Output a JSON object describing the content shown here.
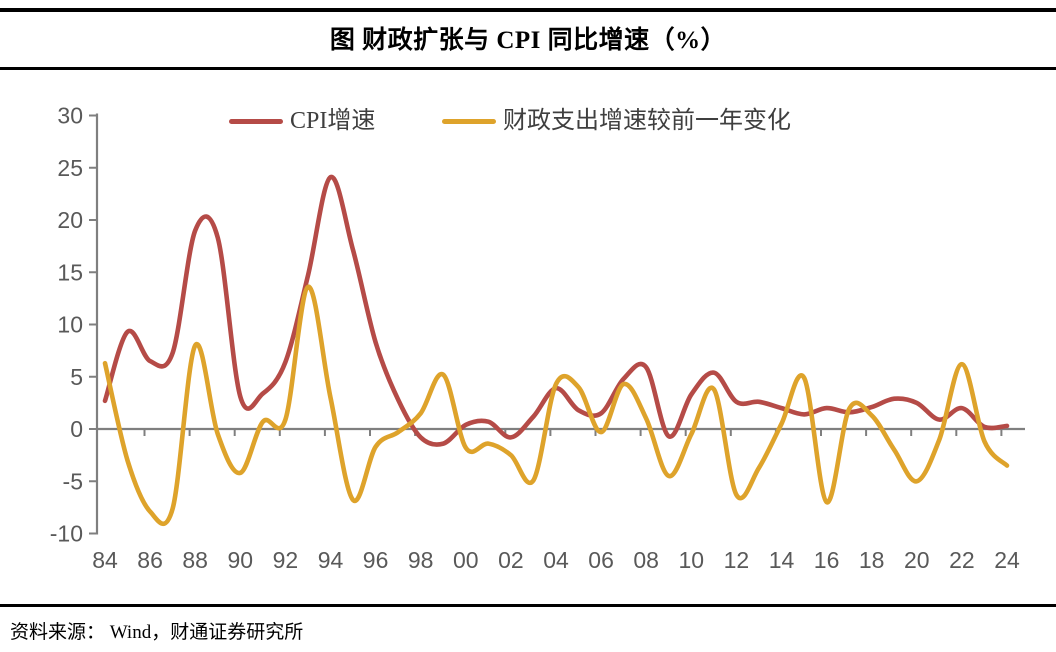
{
  "header": {
    "title": "图  财政扩张与 CPI 同比增速（%）"
  },
  "source_note": {
    "text": "资料来源：  Wind，财通证券研究所"
  },
  "chart_data": {
    "type": "line",
    "title": "图  财政扩张与 CPI 同比增速（%）",
    "xlabel": "",
    "ylabel": "",
    "ylim": [
      -10,
      30
    ],
    "y_ticks": [
      30,
      25,
      20,
      15,
      10,
      5,
      0,
      -5,
      -10
    ],
    "x_years": [
      1984,
      1985,
      1986,
      1987,
      1988,
      1989,
      1990,
      1991,
      1992,
      1993,
      1994,
      1995,
      1996,
      1997,
      1998,
      1999,
      2000,
      2001,
      2002,
      2003,
      2004,
      2005,
      2006,
      2007,
      2008,
      2009,
      2010,
      2011,
      2012,
      2013,
      2014,
      2015,
      2016,
      2017,
      2018,
      2019,
      2020,
      2021,
      2022,
      2023,
      2024
    ],
    "x_tick_labels": [
      "84",
      "86",
      "88",
      "90",
      "92",
      "94",
      "96",
      "98",
      "00",
      "02",
      "04",
      "06",
      "08",
      "10",
      "12",
      "14",
      "16",
      "18",
      "20",
      "22",
      "24"
    ],
    "grid": false,
    "legend_position": "top",
    "axis_color": "#7f7f7f",
    "tick_label_color": "#595959",
    "series": [
      {
        "name": "CPI增速",
        "color": "#b54b47",
        "values": [
          2.7,
          9.3,
          6.5,
          7.3,
          19.0,
          18.3,
          3.1,
          3.4,
          6.4,
          14.7,
          24.1,
          17.1,
          8.3,
          2.8,
          -0.8,
          -1.4,
          0.4,
          0.7,
          -0.8,
          1.2,
          3.9,
          1.8,
          1.5,
          4.8,
          5.9,
          -0.7,
          3.3,
          5.4,
          2.6,
          2.6,
          2.0,
          1.4,
          2.0,
          1.6,
          2.1,
          2.9,
          2.5,
          0.9,
          2.0,
          0.2,
          0.3
        ]
      },
      {
        "name": "财政支出增速较前一年变化",
        "color": "#dea32b",
        "values": [
          6.3,
          -3.0,
          -7.9,
          -7.6,
          8.0,
          -0.5,
          -4.2,
          0.7,
          0.9,
          13.6,
          3.0,
          -6.8,
          -1.7,
          -0.3,
          1.5,
          5.2,
          -1.8,
          -1.4,
          -2.5,
          -4.9,
          4.3,
          4.0,
          -0.3,
          4.3,
          1.0,
          -4.5,
          -0.5,
          3.8,
          -6.3,
          -3.7,
          0.5,
          4.9,
          -7.0,
          1.9,
          1.3,
          -2.0,
          -5.0,
          -1.0,
          6.2,
          -1.2,
          -3.5
        ]
      }
    ]
  }
}
